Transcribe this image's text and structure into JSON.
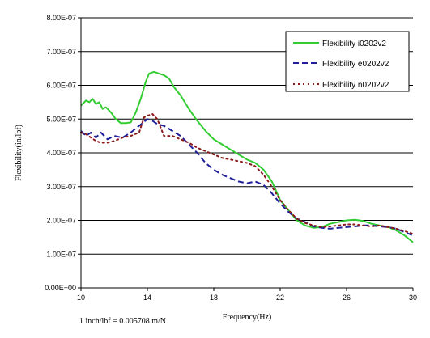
{
  "chart_data": {
    "type": "line",
    "xlabel": "Frequency(Hz)",
    "ylabel": "Flexibility(in/lbf)",
    "xlim": [
      10,
      30
    ],
    "ylim": [
      0,
      8e-07
    ],
    "x_ticks": [
      10,
      14,
      18,
      22,
      26,
      30
    ],
    "x_tick_labels": [
      "10",
      "14",
      "18",
      "22",
      "26",
      "30"
    ],
    "y_ticks": [
      0,
      1e-07,
      2e-07,
      3e-07,
      4e-07,
      5e-07,
      6e-07,
      7e-07,
      8e-07
    ],
    "y_tick_labels": [
      "0.00E+00",
      "1.00E-07",
      "2.00E-07",
      "3.00E-07",
      "4.00E-07",
      "5.00E-07",
      "6.00E-07",
      "7.00E-07",
      "8.00E-07"
    ],
    "grid": "horizontal",
    "legend_position": "top-right",
    "footnote": "1 inch/lbf = 0.005708 m/N",
    "series": [
      {
        "name": "Flexibility i0202v2",
        "color": "#33cc33",
        "style": "solid",
        "x": [
          10,
          10.3,
          10.5,
          10.7,
          10.9,
          11.1,
          11.3,
          11.5,
          11.8,
          12.1,
          12.4,
          12.7,
          13.0,
          13.3,
          13.6,
          13.9,
          14.1,
          14.4,
          14.7,
          15.0,
          15.3,
          15.6,
          16.0,
          16.5,
          17.0,
          17.5,
          18.0,
          18.5,
          19.0,
          19.5,
          20.0,
          20.5,
          21.0,
          21.5,
          22.0,
          22.5,
          23.0,
          23.5,
          24.0,
          24.5,
          25.0,
          25.5,
          26.0,
          26.5,
          27.0,
          27.5,
          28.0,
          28.5,
          29.0,
          29.5,
          30.0
        ],
        "values": [
          5.4e-07,
          5.55e-07,
          5.5e-07,
          5.6e-07,
          5.45e-07,
          5.5e-07,
          5.3e-07,
          5.35e-07,
          5.2e-07,
          5e-07,
          4.88e-07,
          4.88e-07,
          4.9e-07,
          5.2e-07,
          5.6e-07,
          6.1e-07,
          6.35e-07,
          6.4e-07,
          6.35e-07,
          6.3e-07,
          6.2e-07,
          5.95e-07,
          5.7e-07,
          5.3e-07,
          4.95e-07,
          4.65e-07,
          4.4e-07,
          4.25e-07,
          4.1e-07,
          3.95e-07,
          3.8e-07,
          3.7e-07,
          3.5e-07,
          3.15e-07,
          2.6e-07,
          2.3e-07,
          2e-07,
          1.85e-07,
          1.78e-07,
          1.8e-07,
          1.9e-07,
          1.95e-07,
          2e-07,
          2.02e-07,
          1.98e-07,
          1.9e-07,
          1.85e-07,
          1.8e-07,
          1.7e-07,
          1.55e-07,
          1.35e-07
        ]
      },
      {
        "name": "Flexibility e0202v2",
        "color": "#1f1f99",
        "style": "dashed",
        "x": [
          10,
          10.3,
          10.6,
          10.9,
          11.2,
          11.6,
          12.0,
          12.5,
          13.0,
          13.5,
          14.0,
          14.3,
          14.6,
          15.0,
          15.5,
          16.0,
          16.5,
          17.0,
          17.5,
          18.0,
          18.5,
          19.0,
          19.5,
          20.0,
          20.5,
          21.0,
          21.5,
          22.0,
          22.5,
          23.0,
          23.5,
          24.0,
          24.5,
          25.0,
          25.5,
          26.0,
          26.5,
          27.0,
          27.5,
          28.0,
          28.5,
          29.0,
          29.5,
          30.0
        ],
        "values": [
          4.65e-07,
          4.5e-07,
          4.6e-07,
          4.45e-07,
          4.6e-07,
          4.4e-07,
          4.5e-07,
          4.45e-07,
          4.6e-07,
          4.8e-07,
          5e-07,
          4.95e-07,
          4.85e-07,
          4.8e-07,
          4.65e-07,
          4.5e-07,
          4.25e-07,
          4e-07,
          3.7e-07,
          3.5e-07,
          3.35e-07,
          3.25e-07,
          3.15e-07,
          3.1e-07,
          3.15e-07,
          3.05e-07,
          2.8e-07,
          2.5e-07,
          2.25e-07,
          2.05e-07,
          1.95e-07,
          1.82e-07,
          1.78e-07,
          1.75e-07,
          1.78e-07,
          1.8e-07,
          1.82e-07,
          1.85e-07,
          1.85e-07,
          1.82e-07,
          1.8e-07,
          1.75e-07,
          1.65e-07,
          1.55e-07
        ]
      },
      {
        "name": "Flexibility n0202v2",
        "color": "#8b1a1a",
        "style": "dotted",
        "x": [
          10,
          10.3,
          10.6,
          10.9,
          11.2,
          11.6,
          12.0,
          12.5,
          13.0,
          13.5,
          13.8,
          14.0,
          14.3,
          14.6,
          15.0,
          15.5,
          16.0,
          16.5,
          17.0,
          17.5,
          18.0,
          18.5,
          19.0,
          19.5,
          20.0,
          20.5,
          21.0,
          21.5,
          22.0,
          22.5,
          23.0,
          23.5,
          24.0,
          24.5,
          25.0,
          25.5,
          26.0,
          26.5,
          27.0,
          27.5,
          28.0,
          28.5,
          29.0,
          29.5,
          30.0
        ],
        "values": [
          4.6e-07,
          4.55e-07,
          4.45e-07,
          4.35e-07,
          4.3e-07,
          4.3e-07,
          4.35e-07,
          4.45e-07,
          4.5e-07,
          4.6e-07,
          5.05e-07,
          5.1e-07,
          5.15e-07,
          5e-07,
          4.5e-07,
          4.5e-07,
          4.4e-07,
          4.3e-07,
          4.15e-07,
          4.05e-07,
          3.95e-07,
          3.85e-07,
          3.8e-07,
          3.75e-07,
          3.7e-07,
          3.6e-07,
          3.35e-07,
          3e-07,
          2.6e-07,
          2.3e-07,
          2.05e-07,
          1.92e-07,
          1.85e-07,
          1.8e-07,
          1.82e-07,
          1.85e-07,
          1.88e-07,
          1.88e-07,
          1.85e-07,
          1.82e-07,
          1.85e-07,
          1.8e-07,
          1.75e-07,
          1.68e-07,
          1.6e-07
        ]
      }
    ]
  }
}
